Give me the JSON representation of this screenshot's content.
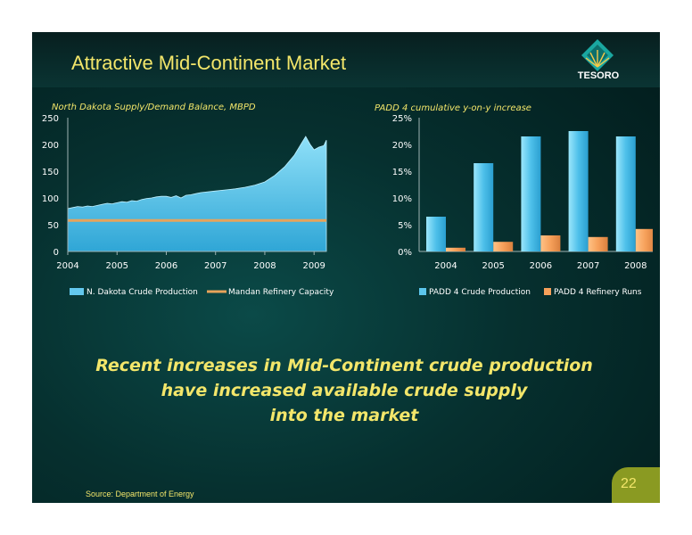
{
  "slide": {
    "title": "Attractive Mid-Continent Market",
    "logo_text": "TESORO",
    "message_lines": [
      "Recent increases in Mid-Continent crude production",
      "have increased available crude supply",
      "into the market"
    ],
    "source": "Source: Department of Energy",
    "page_number": "22"
  },
  "colors": {
    "title": "#f3e66a",
    "area_fill": "#63c8ee",
    "capacity_line": "#e8a35a",
    "bar_production": "#5cc6ec",
    "bar_runs": "#f6a05a",
    "axis_text": "#ffffff"
  },
  "chart_data": [
    {
      "type": "area",
      "title": "North Dakota Supply/Demand Balance, MBPD",
      "x_ticks": [
        "2004",
        "2005",
        "2006",
        "2007",
        "2008",
        "2009"
      ],
      "y_ticks": [
        "0",
        "50",
        "100",
        "150",
        "200",
        "250"
      ],
      "ylim": [
        0,
        250
      ],
      "xlim": [
        2004.0,
        2009.25
      ],
      "grid": false,
      "legend": "bottom",
      "series": [
        {
          "name": "N. Dakota Crude Production",
          "kind": "area",
          "points": [
            [
              2004.0,
              80
            ],
            [
              2004.1,
              82
            ],
            [
              2004.2,
              84
            ],
            [
              2004.3,
              83
            ],
            [
              2004.4,
              85
            ],
            [
              2004.5,
              84
            ],
            [
              2004.6,
              86
            ],
            [
              2004.7,
              88
            ],
            [
              2004.8,
              90
            ],
            [
              2004.9,
              89
            ],
            [
              2005.0,
              91
            ],
            [
              2005.1,
              93
            ],
            [
              2005.2,
              92
            ],
            [
              2005.3,
              95
            ],
            [
              2005.4,
              94
            ],
            [
              2005.5,
              97
            ],
            [
              2005.6,
              99
            ],
            [
              2005.7,
              100
            ],
            [
              2005.8,
              102
            ],
            [
              2005.9,
              103
            ],
            [
              2006.0,
              103
            ],
            [
              2006.1,
              101
            ],
            [
              2006.2,
              104
            ],
            [
              2006.3,
              100
            ],
            [
              2006.4,
              105
            ],
            [
              2006.5,
              106
            ],
            [
              2006.6,
              108
            ],
            [
              2006.7,
              110
            ],
            [
              2006.8,
              111
            ],
            [
              2006.9,
              112
            ],
            [
              2007.0,
              113
            ],
            [
              2007.2,
              115
            ],
            [
              2007.4,
              117
            ],
            [
              2007.6,
              120
            ],
            [
              2007.8,
              124
            ],
            [
              2008.0,
              130
            ],
            [
              2008.2,
              142
            ],
            [
              2008.4,
              158
            ],
            [
              2008.6,
              180
            ],
            [
              2008.75,
              203
            ],
            [
              2008.83,
              215
            ],
            [
              2008.92,
              200
            ],
            [
              2009.0,
              190
            ],
            [
              2009.1,
              195
            ],
            [
              2009.2,
              198
            ],
            [
              2009.25,
              208
            ]
          ]
        },
        {
          "name": "Mandan Refinery Capacity",
          "kind": "line",
          "points": [
            [
              2004.0,
              58
            ],
            [
              2009.25,
              58
            ]
          ]
        }
      ]
    },
    {
      "type": "bar",
      "title": "PADD 4 cumulative y-on-y increase",
      "categories": [
        "2004",
        "2005",
        "2006",
        "2007",
        "2008"
      ],
      "y_ticks": [
        "0%",
        "5%",
        "10%",
        "15%",
        "20%",
        "25%"
      ],
      "ylim": [
        0,
        25
      ],
      "grid": false,
      "legend": "bottom",
      "series": [
        {
          "name": "PADD 4 Crude Production",
          "values": [
            6.5,
            16.5,
            21.5,
            22.5,
            21.5
          ]
        },
        {
          "name": "PADD 4 Refinery Runs",
          "values": [
            0.7,
            1.8,
            3.0,
            2.7,
            4.2
          ]
        }
      ]
    }
  ]
}
